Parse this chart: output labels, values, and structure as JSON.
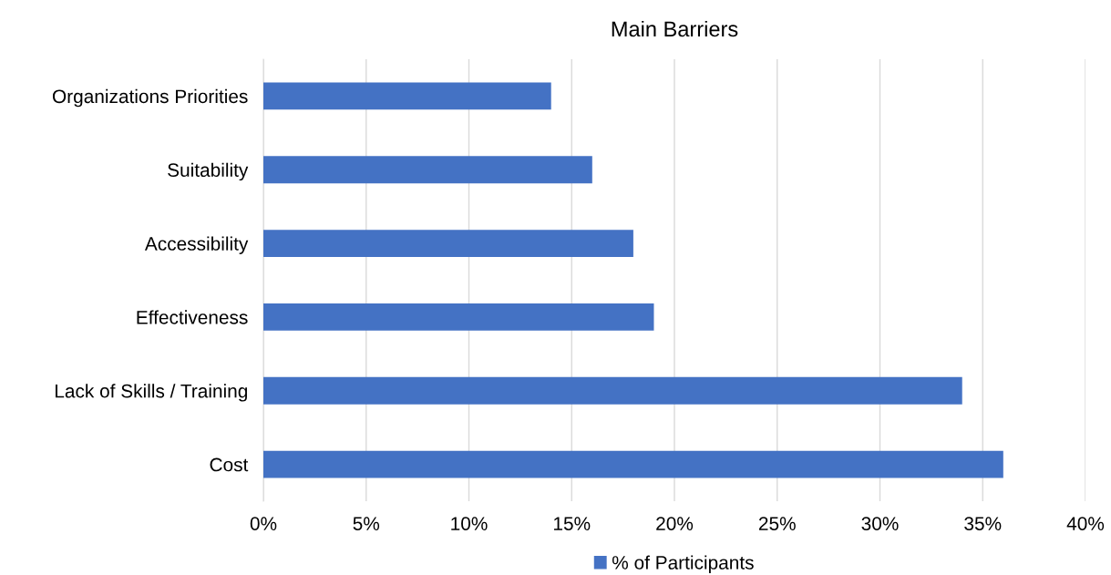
{
  "chart_data": {
    "type": "bar",
    "orientation": "horizontal",
    "title": "Main Barriers",
    "categories": [
      "Organizations Priorities",
      "Suitability",
      "Accessibility",
      "Effectiveness",
      "Lack of Skills / Training",
      "Cost"
    ],
    "series": [
      {
        "name": "% of Participants",
        "color": "#4472c4",
        "values": [
          14,
          16,
          18,
          19,
          34,
          36
        ]
      }
    ],
    "xlim": [
      0,
      40
    ],
    "xticks": [
      {
        "value": 0,
        "label": "0%"
      },
      {
        "value": 5,
        "label": "5%"
      },
      {
        "value": 10,
        "label": "10%"
      },
      {
        "value": 15,
        "label": "15%"
      },
      {
        "value": 20,
        "label": "20%"
      },
      {
        "value": 25,
        "label": "25%"
      },
      {
        "value": 30,
        "label": "30%"
      },
      {
        "value": 35,
        "label": "35%"
      },
      {
        "value": 40,
        "label": "40%"
      }
    ],
    "grid": "x",
    "legend": "bottom"
  }
}
